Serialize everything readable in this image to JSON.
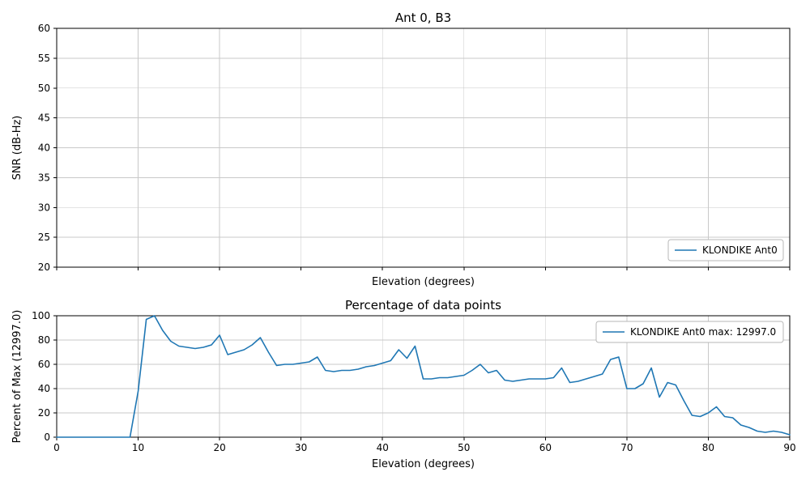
{
  "page": {
    "background": "#ffffff",
    "accent_color": "#1f77b4",
    "grid_color": "#c8c8c8"
  },
  "chart_data": [
    {
      "type": "line",
      "title": "Ant 0, B3",
      "xlabel": "Elevation (degrees)",
      "ylabel": "SNR (dB-Hz)",
      "xlim": [
        0,
        90
      ],
      "ylim": [
        20,
        60
      ],
      "xticks": [
        0,
        10,
        20,
        30,
        40,
        50,
        60,
        70,
        80,
        90
      ],
      "yticks": [
        20,
        25,
        30,
        35,
        40,
        45,
        50,
        55,
        60
      ],
      "show_xtick_labels": false,
      "grid": true,
      "legend": {
        "position": "lower-right",
        "entries": [
          {
            "label": "KLONDIKE Ant0",
            "color": "#1f77b4"
          }
        ]
      },
      "series": []
    },
    {
      "type": "line",
      "title": "Percentage of data points",
      "xlabel": "Elevation (degrees)",
      "ylabel": "Percent of Max (12997.0)",
      "xlim": [
        0,
        90
      ],
      "ylim": [
        0,
        100
      ],
      "xticks": [
        0,
        10,
        20,
        30,
        40,
        50,
        60,
        70,
        80,
        90
      ],
      "yticks": [
        0,
        20,
        40,
        60,
        80,
        100
      ],
      "show_xtick_labels": true,
      "grid": true,
      "legend": {
        "position": "upper-right",
        "entries": [
          {
            "label": "KLONDIKE Ant0 max: 12997.0",
            "color": "#1f77b4"
          }
        ]
      },
      "series": [
        {
          "name": "KLONDIKE Ant0 max: 12997.0",
          "color": "#1f77b4",
          "x": [
            0,
            1,
            2,
            3,
            4,
            5,
            6,
            7,
            8,
            9,
            10,
            11,
            12,
            13,
            14,
            15,
            16,
            17,
            18,
            19,
            20,
            21,
            22,
            23,
            24,
            25,
            26,
            27,
            28,
            29,
            30,
            31,
            32,
            33,
            34,
            35,
            36,
            37,
            38,
            39,
            40,
            41,
            42,
            43,
            44,
            45,
            46,
            47,
            48,
            49,
            50,
            51,
            52,
            53,
            54,
            55,
            56,
            57,
            58,
            59,
            60,
            61,
            62,
            63,
            64,
            65,
            66,
            67,
            68,
            69,
            70,
            71,
            72,
            73,
            74,
            75,
            76,
            77,
            78,
            79,
            80,
            81,
            82,
            83,
            84,
            85,
            86,
            87,
            88,
            89,
            90
          ],
          "y": [
            0,
            0,
            0,
            0,
            0,
            0,
            0,
            0,
            0,
            0,
            38,
            97,
            100,
            88,
            79,
            75,
            74,
            73,
            74,
            76,
            84,
            68,
            70,
            72,
            76,
            82,
            70,
            59,
            60,
            60,
            61,
            62,
            66,
            55,
            54,
            55,
            55,
            56,
            58,
            59,
            61,
            63,
            72,
            65,
            75,
            48,
            48,
            49,
            49,
            50,
            51,
            55,
            60,
            53,
            55,
            47,
            46,
            47,
            48,
            48,
            48,
            49,
            57,
            45,
            46,
            48,
            50,
            52,
            64,
            66,
            40,
            40,
            44,
            57,
            33,
            45,
            43,
            30,
            18,
            17,
            20,
            25,
            17,
            16,
            10,
            8,
            5,
            4,
            5,
            4,
            2
          ]
        }
      ]
    }
  ]
}
